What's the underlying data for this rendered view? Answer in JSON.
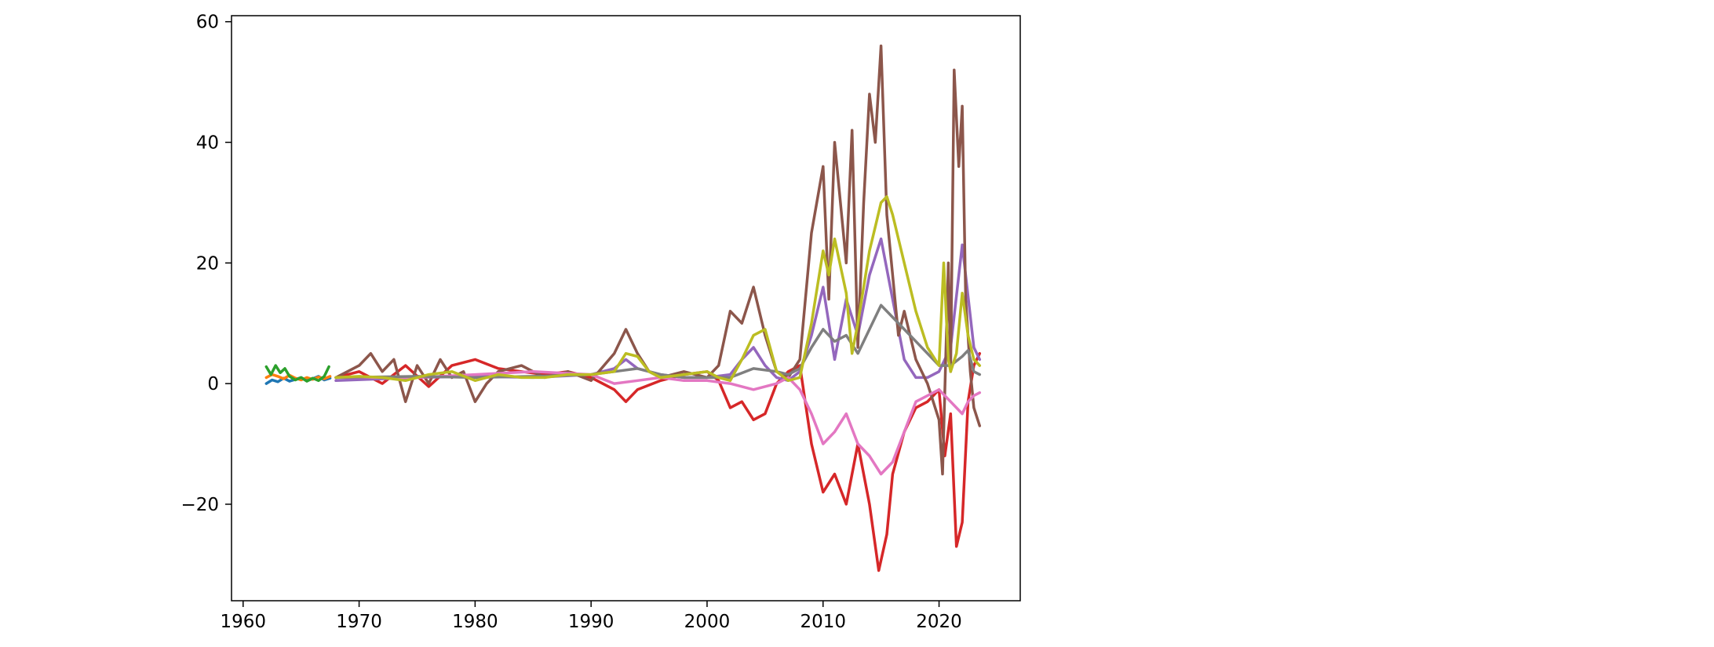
{
  "chart_data": {
    "type": "line",
    "title": "",
    "xlabel": "",
    "ylabel": "",
    "xlim": [
      1959,
      2027
    ],
    "ylim": [
      -36,
      61
    ],
    "xticks": [
      1960,
      1970,
      1980,
      1990,
      2000,
      2010,
      2020
    ],
    "yticks": [
      -20,
      0,
      20,
      40,
      60
    ],
    "xtick_labels": [
      "1960",
      "1970",
      "1980",
      "1990",
      "2000",
      "2010",
      "2020"
    ],
    "ytick_labels": [
      "−20",
      "0",
      "20",
      "40",
      "60"
    ],
    "grid": false,
    "legend": "none",
    "series": [
      {
        "color": "#1f77b4",
        "x": [
          1962.0,
          1962.5,
          1963.0,
          1963.5,
          1964.0,
          1964.5,
          1965.0,
          1965.5,
          1966.0,
          1966.5,
          1967.0,
          1967.5
        ],
        "y": [
          0.0,
          0.6,
          0.3,
          0.9,
          0.4,
          0.7,
          1.0,
          0.5,
          0.8,
          1.2,
          0.6,
          0.9
        ]
      },
      {
        "color": "#ff7f0e",
        "x": [
          1962.0,
          1962.5,
          1963.0,
          1963.5,
          1964.0,
          1964.5,
          1965.0,
          1965.5,
          1966.0,
          1966.5,
          1967.0,
          1967.5
        ],
        "y": [
          1.0,
          1.5,
          1.2,
          0.8,
          1.4,
          0.9,
          0.6,
          1.0,
          0.7,
          1.1,
          0.8,
          1.2
        ]
      },
      {
        "color": "#2ca02c",
        "x": [
          1962.0,
          1962.4,
          1962.8,
          1963.2,
          1963.6,
          1964.0,
          1964.5,
          1965.0,
          1965.5,
          1966.0,
          1966.5,
          1967.0,
          1967.4
        ],
        "y": [
          2.8,
          1.5,
          3.0,
          1.8,
          2.5,
          1.2,
          0.6,
          1.0,
          0.4,
          0.9,
          0.5,
          1.2,
          2.8
        ]
      },
      {
        "color": "#d62728",
        "x": [
          1968,
          1970,
          1972,
          1974,
          1976,
          1978,
          1980,
          1982,
          1984,
          1986,
          1988,
          1990,
          1992,
          1993,
          1994,
          1996,
          1998,
          2000,
          2001,
          2002,
          2003,
          2004,
          2005,
          2006,
          2007,
          2008,
          2009,
          2010,
          2011,
          2012,
          2013,
          2014,
          2014.8,
          2015.5,
          2016,
          2017,
          2018,
          2019,
          2020,
          2020.5,
          2021,
          2021.5,
          2022,
          2022.5,
          2023,
          2023.5
        ],
        "y": [
          1.0,
          2.0,
          0.0,
          3.0,
          -0.5,
          3.0,
          4.0,
          2.5,
          2.0,
          1.5,
          2.0,
          1.0,
          -1.0,
          -3.0,
          -1.0,
          0.5,
          1.5,
          2.0,
          0.5,
          -4.0,
          -3.0,
          -6.0,
          -5.0,
          0.0,
          2.0,
          3.0,
          -10.0,
          -18.0,
          -15.0,
          -20.0,
          -10.0,
          -20.0,
          -31.0,
          -25.0,
          -15.0,
          -8.0,
          -4.0,
          -3.0,
          -1.0,
          -12.0,
          -5.0,
          -27.0,
          -23.0,
          -3.0,
          3.0,
          5.0
        ]
      },
      {
        "color": "#9467bd",
        "x": [
          1968,
          1975,
          1980,
          1985,
          1990,
          1992,
          1993,
          1994,
          1996,
          1998,
          2000,
          2002,
          2003,
          2004,
          2005,
          2006,
          2007,
          2008,
          2009,
          2010,
          2011,
          2012,
          2013,
          2014,
          2015,
          2016,
          2017,
          2018,
          2019,
          2020,
          2021,
          2022,
          2023,
          2023.5
        ],
        "y": [
          0.5,
          1.0,
          1.2,
          1.0,
          1.5,
          2.5,
          4.0,
          2.5,
          1.5,
          1.0,
          1.0,
          1.5,
          4.0,
          6.0,
          3.0,
          1.0,
          0.5,
          2.0,
          8.0,
          16.0,
          4.0,
          14.0,
          8.0,
          18.0,
          24.0,
          14.0,
          4.0,
          1.0,
          1.0,
          2.0,
          6.0,
          23.0,
          6.0,
          4.0
        ]
      },
      {
        "color": "#8c564b",
        "x": [
          1968,
          1970,
          1971,
          1972,
          1973,
          1974,
          1975,
          1976,
          1977,
          1978,
          1979,
          1980,
          1981,
          1982,
          1984,
          1986,
          1988,
          1990,
          1992,
          1993,
          1994,
          1995,
          1996,
          1998,
          2000,
          2001,
          2002,
          2003,
          2004,
          2005,
          2006,
          2007,
          2008,
          2009,
          2010,
          2010.5,
          2011,
          2012,
          2012.5,
          2013,
          2013.5,
          2014,
          2014.5,
          2015,
          2015.5,
          2016,
          2016.5,
          2017,
          2018,
          2019,
          2020,
          2020.3,
          2020.8,
          2021,
          2021.3,
          2021.7,
          2022,
          2022.3,
          2022.7,
          2023,
          2023.5
        ],
        "y": [
          1.0,
          3.0,
          5.0,
          2.0,
          4.0,
          -3.0,
          3.0,
          0.0,
          4.0,
          1.0,
          2.0,
          -3.0,
          0.0,
          2.0,
          3.0,
          1.0,
          2.0,
          0.5,
          5.0,
          9.0,
          5.0,
          2.0,
          1.0,
          2.0,
          1.0,
          3.0,
          12.0,
          10.0,
          16.0,
          8.0,
          2.0,
          1.0,
          4.0,
          25.0,
          36.0,
          14.0,
          40.0,
          20.0,
          42.0,
          6.0,
          30.0,
          48.0,
          40.0,
          56.0,
          28.0,
          18.0,
          8.0,
          12.0,
          4.0,
          0.0,
          -6.0,
          -15.0,
          20.0,
          2.0,
          52.0,
          36.0,
          46.0,
          14.0,
          2.0,
          -4.0,
          -7.0
        ]
      },
      {
        "color": "#e377c2",
        "x": [
          1968,
          1975,
          1980,
          1985,
          1990,
          1992,
          1994,
          1996,
          1998,
          2000,
          2002,
          2004,
          2006,
          2007,
          2008,
          2009,
          2010,
          2011,
          2012,
          2013,
          2014,
          2015,
          2016,
          2017,
          2018,
          2019,
          2020,
          2021,
          2022,
          2022.5,
          2023,
          2023.5
        ],
        "y": [
          1.0,
          1.0,
          1.5,
          2.0,
          1.5,
          0.0,
          0.5,
          1.0,
          0.5,
          0.5,
          0.0,
          -1.0,
          0.0,
          1.0,
          -1.0,
          -5.0,
          -10.0,
          -8.0,
          -5.0,
          -10.0,
          -12.0,
          -15.0,
          -13.0,
          -8.0,
          -3.0,
          -2.0,
          -1.0,
          -3.0,
          -5.0,
          -3.0,
          -2.0,
          -1.5
        ]
      },
      {
        "color": "#7f7f7f",
        "x": [
          1968,
          1975,
          1980,
          1985,
          1990,
          1992,
          1994,
          1996,
          1998,
          2000,
          2002,
          2004,
          2006,
          2007,
          2008,
          2009,
          2010,
          2011,
          2012,
          2013,
          2014,
          2015,
          2016,
          2017,
          2018,
          2019,
          2020,
          2021,
          2022,
          2022.5,
          2023,
          2023.5
        ],
        "y": [
          1.0,
          1.2,
          1.0,
          1.2,
          1.5,
          2.0,
          2.5,
          1.5,
          1.0,
          1.0,
          1.0,
          2.5,
          2.0,
          1.5,
          2.5,
          6.0,
          9.0,
          7.0,
          8.0,
          5.0,
          9.0,
          13.0,
          11.0,
          9.0,
          7.0,
          5.0,
          3.0,
          3.0,
          4.5,
          5.5,
          2.0,
          1.5
        ]
      },
      {
        "color": "#bcbd22",
        "x": [
          1968,
          1970,
          1972,
          1974,
          1976,
          1978,
          1980,
          1982,
          1984,
          1986,
          1988,
          1990,
          1992,
          1993,
          1994,
          1995,
          1996,
          1998,
          2000,
          2001,
          2002,
          2003,
          2004,
          2005,
          2006,
          2007,
          2008,
          2009,
          2010,
          2010.5,
          2011,
          2012,
          2012.5,
          2013,
          2014,
          2014.5,
          2015,
          2015.5,
          2016,
          2017,
          2018,
          2019,
          2020,
          2020.4,
          2020.8,
          2021,
          2021.5,
          2022,
          2022.5,
          2023,
          2023.5
        ],
        "y": [
          1.0,
          1.2,
          1.0,
          0.5,
          1.5,
          2.0,
          0.5,
          1.5,
          1.0,
          1.0,
          1.5,
          1.5,
          2.0,
          5.0,
          4.5,
          2.0,
          1.0,
          1.5,
          2.0,
          1.0,
          0.5,
          4.0,
          8.0,
          9.0,
          2.0,
          0.5,
          1.0,
          10.0,
          22.0,
          18.0,
          24.0,
          15.0,
          5.0,
          10.0,
          22.0,
          26.0,
          30.0,
          31.0,
          28.0,
          20.0,
          12.0,
          6.0,
          3.0,
          20.0,
          4.0,
          2.0,
          5.0,
          15.0,
          8.0,
          4.0,
          3.0
        ]
      }
    ]
  }
}
